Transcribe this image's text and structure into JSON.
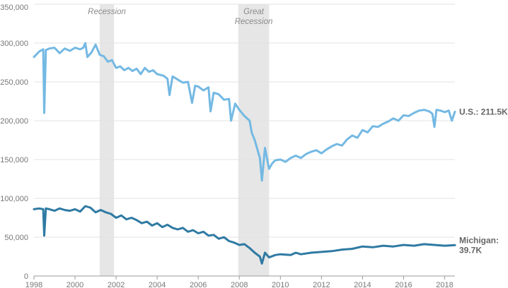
{
  "chart_data": {
    "type": "line",
    "x_axis": {
      "min": 1998,
      "max": 2018.5,
      "ticks": [
        "1998",
        "2000",
        "2002",
        "2004",
        "2006",
        "2008",
        "2010",
        "2012",
        "2014",
        "2016",
        "2018"
      ]
    },
    "y_axis": {
      "min": 0,
      "max": 350000,
      "ticks": [
        "0",
        "50,000",
        "100,000",
        "150,000",
        "200,000",
        "250,000",
        "300,000",
        "350,000"
      ]
    },
    "grid": "horizontal",
    "shaded_periods": [
      {
        "label": [
          "Recession"
        ],
        "start": 2001.2,
        "end": 2001.9
      },
      {
        "label": [
          "Great",
          "Recession"
        ],
        "start": 2007.95,
        "end": 2009.45
      }
    ],
    "series": [
      {
        "name": "U.S.",
        "end_label": [
          "U.S.: 211.5K"
        ],
        "color": "#74b9e3",
        "points": [
          [
            1998.0,
            282000
          ],
          [
            1998.25,
            289000
          ],
          [
            1998.45,
            292000
          ],
          [
            1998.5,
            210000
          ],
          [
            1998.58,
            291000
          ],
          [
            1998.75,
            293000
          ],
          [
            1999.0,
            294000
          ],
          [
            1999.25,
            287000
          ],
          [
            1999.5,
            293000
          ],
          [
            1999.75,
            290000
          ],
          [
            2000.0,
            294000
          ],
          [
            2000.25,
            292000
          ],
          [
            2000.4,
            294000
          ],
          [
            2000.5,
            300000
          ],
          [
            2000.6,
            282000
          ],
          [
            2000.8,
            288000
          ],
          [
            2001.0,
            298000
          ],
          [
            2001.2,
            285000
          ],
          [
            2001.4,
            283000
          ],
          [
            2001.6,
            276000
          ],
          [
            2001.8,
            278000
          ],
          [
            2002.0,
            268000
          ],
          [
            2002.2,
            270000
          ],
          [
            2002.4,
            265000
          ],
          [
            2002.6,
            268000
          ],
          [
            2002.8,
            264000
          ],
          [
            2003.0,
            267000
          ],
          [
            2003.2,
            260000
          ],
          [
            2003.4,
            268000
          ],
          [
            2003.6,
            263000
          ],
          [
            2003.8,
            265000
          ],
          [
            2004.0,
            260000
          ],
          [
            2004.3,
            258000
          ],
          [
            2004.5,
            254000
          ],
          [
            2004.6,
            233000
          ],
          [
            2004.75,
            257000
          ],
          [
            2005.0,
            253000
          ],
          [
            2005.25,
            249000
          ],
          [
            2005.5,
            250000
          ],
          [
            2005.7,
            223000
          ],
          [
            2005.85,
            245000
          ],
          [
            2006.0,
            244000
          ],
          [
            2006.25,
            239000
          ],
          [
            2006.5,
            243000
          ],
          [
            2006.6,
            212000
          ],
          [
            2006.75,
            236000
          ],
          [
            2007.0,
            234000
          ],
          [
            2007.25,
            227000
          ],
          [
            2007.5,
            228000
          ],
          [
            2007.6,
            200000
          ],
          [
            2007.8,
            222000
          ],
          [
            2008.0,
            214000
          ],
          [
            2008.25,
            206000
          ],
          [
            2008.5,
            200000
          ],
          [
            2008.6,
            185000
          ],
          [
            2008.75,
            175000
          ],
          [
            2009.0,
            152000
          ],
          [
            2009.1,
            123000
          ],
          [
            2009.25,
            165000
          ],
          [
            2009.45,
            138000
          ],
          [
            2009.6,
            145000
          ],
          [
            2009.75,
            149000
          ],
          [
            2010.0,
            150000
          ],
          [
            2010.25,
            147000
          ],
          [
            2010.5,
            152000
          ],
          [
            2010.75,
            155000
          ],
          [
            2011.0,
            152000
          ],
          [
            2011.25,
            157000
          ],
          [
            2011.5,
            160000
          ],
          [
            2011.75,
            162000
          ],
          [
            2012.0,
            158000
          ],
          [
            2012.25,
            163000
          ],
          [
            2012.5,
            167000
          ],
          [
            2012.75,
            170000
          ],
          [
            2013.0,
            168000
          ],
          [
            2013.25,
            176000
          ],
          [
            2013.5,
            181000
          ],
          [
            2013.75,
            178000
          ],
          [
            2014.0,
            188000
          ],
          [
            2014.25,
            185000
          ],
          [
            2014.5,
            193000
          ],
          [
            2014.75,
            192000
          ],
          [
            2015.0,
            196000
          ],
          [
            2015.25,
            199000
          ],
          [
            2015.5,
            203000
          ],
          [
            2015.75,
            200000
          ],
          [
            2016.0,
            207000
          ],
          [
            2016.25,
            206000
          ],
          [
            2016.5,
            210000
          ],
          [
            2016.75,
            213000
          ],
          [
            2017.0,
            214000
          ],
          [
            2017.25,
            212000
          ],
          [
            2017.4,
            209000
          ],
          [
            2017.5,
            192000
          ],
          [
            2017.6,
            214000
          ],
          [
            2017.8,
            213000
          ],
          [
            2018.0,
            211000
          ],
          [
            2018.2,
            213000
          ],
          [
            2018.35,
            200000
          ],
          [
            2018.5,
            211500
          ]
        ]
      },
      {
        "name": "Michigan",
        "end_label": [
          "Michigan:",
          "39.7K"
        ],
        "color": "#2f7aa3",
        "points": [
          [
            1998.0,
            86000
          ],
          [
            1998.25,
            87000
          ],
          [
            1998.45,
            86000
          ],
          [
            1998.5,
            52000
          ],
          [
            1998.58,
            87000
          ],
          [
            1998.75,
            86000
          ],
          [
            1999.0,
            84000
          ],
          [
            1999.25,
            87000
          ],
          [
            1999.5,
            85000
          ],
          [
            1999.75,
            84000
          ],
          [
            2000.0,
            86000
          ],
          [
            2000.25,
            83000
          ],
          [
            2000.5,
            90000
          ],
          [
            2000.75,
            88000
          ],
          [
            2001.0,
            82000
          ],
          [
            2001.25,
            85000
          ],
          [
            2001.5,
            82000
          ],
          [
            2001.75,
            80000
          ],
          [
            2002.0,
            75000
          ],
          [
            2002.25,
            78000
          ],
          [
            2002.5,
            73000
          ],
          [
            2002.75,
            75000
          ],
          [
            2003.0,
            72000
          ],
          [
            2003.25,
            68000
          ],
          [
            2003.5,
            70000
          ],
          [
            2003.75,
            65000
          ],
          [
            2004.0,
            68000
          ],
          [
            2004.25,
            63000
          ],
          [
            2004.5,
            66000
          ],
          [
            2004.75,
            62000
          ],
          [
            2005.0,
            60000
          ],
          [
            2005.25,
            62000
          ],
          [
            2005.5,
            57000
          ],
          [
            2005.75,
            59000
          ],
          [
            2006.0,
            55000
          ],
          [
            2006.25,
            57000
          ],
          [
            2006.5,
            52000
          ],
          [
            2006.75,
            53000
          ],
          [
            2007.0,
            48000
          ],
          [
            2007.25,
            50000
          ],
          [
            2007.5,
            45000
          ],
          [
            2007.75,
            43000
          ],
          [
            2008.0,
            40000
          ],
          [
            2008.25,
            41000
          ],
          [
            2008.5,
            36000
          ],
          [
            2008.75,
            30000
          ],
          [
            2009.0,
            25000
          ],
          [
            2009.1,
            16000
          ],
          [
            2009.25,
            30000
          ],
          [
            2009.45,
            24000
          ],
          [
            2009.75,
            27000
          ],
          [
            2010.0,
            28000
          ],
          [
            2010.5,
            27000
          ],
          [
            2010.75,
            30000
          ],
          [
            2011.0,
            28000
          ],
          [
            2011.5,
            30000
          ],
          [
            2012.0,
            31000
          ],
          [
            2012.5,
            32000
          ],
          [
            2013.0,
            34000
          ],
          [
            2013.5,
            35000
          ],
          [
            2014.0,
            38000
          ],
          [
            2014.5,
            37000
          ],
          [
            2015.0,
            39000
          ],
          [
            2015.5,
            38000
          ],
          [
            2016.0,
            40000
          ],
          [
            2016.5,
            39000
          ],
          [
            2017.0,
            41000
          ],
          [
            2017.5,
            40000
          ],
          [
            2018.0,
            39000
          ],
          [
            2018.5,
            39700
          ]
        ]
      }
    ]
  }
}
